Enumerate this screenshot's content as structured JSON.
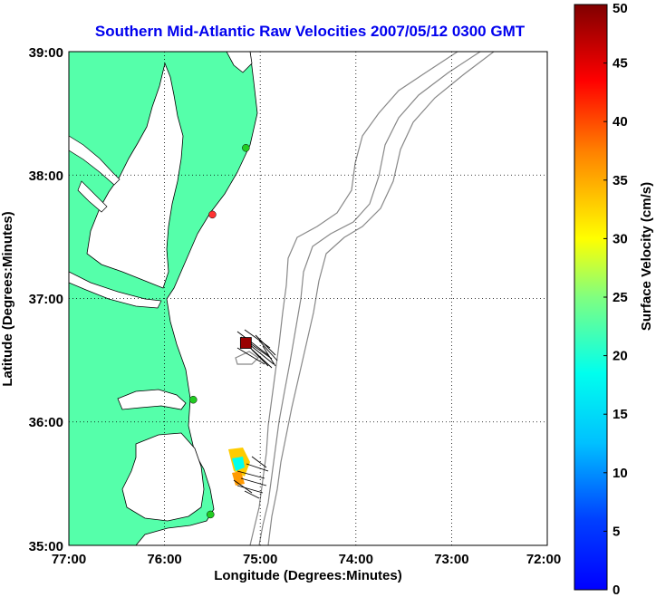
{
  "chart_data": {
    "type": "map",
    "title": "Southern Mid-Atlantic Raw Velocities 2007/05/12 0300 GMT",
    "xlabel": "Longitude (Degrees:Minutes)",
    "ylabel": "Latitude (Degrees:Minutes)",
    "x_ticks": [
      "77:00",
      "76:00",
      "75:00",
      "74:00",
      "73:00",
      "72:00"
    ],
    "y_ticks": [
      "35:00",
      "36:00",
      "37:00",
      "38:00",
      "39:00"
    ],
    "xlim": [
      -77,
      -72
    ],
    "ylim": [
      35,
      39
    ],
    "grid": "dotted",
    "colorbar": {
      "label": "Surface Velocity (cm/s)",
      "ticks": [
        "0",
        "5",
        "10",
        "15",
        "20",
        "25",
        "30",
        "35",
        "40",
        "45",
        "50"
      ],
      "range": [
        0,
        50
      ],
      "colormap": "jet"
    },
    "land_color": "#55ffaa",
    "stations": [
      {
        "lon": -75.15,
        "lat": 38.22,
        "color": "#22cc22"
      },
      {
        "lon": -75.5,
        "lat": 37.68,
        "color": "#ff3333"
      },
      {
        "lon": -75.7,
        "lat": 36.18,
        "color": "#22cc22"
      },
      {
        "lon": -75.52,
        "lat": 35.25,
        "color": "#22cc22"
      }
    ],
    "marker_square": {
      "lon": -75.15,
      "lat": 36.64,
      "color": "#990000"
    },
    "vectors_north": {
      "lon": [
        -75.22,
        -74.92
      ],
      "lat": [
        36.5,
        36.82
      ],
      "color": "#000000"
    },
    "vectors_south": {
      "lon": [
        -75.45,
        -75.05
      ],
      "lat": [
        35.4,
        35.8
      ],
      "color": "#000000"
    }
  }
}
